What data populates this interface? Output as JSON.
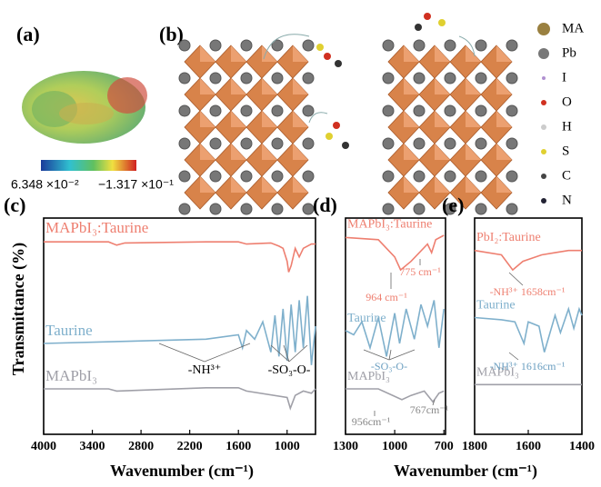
{
  "figure": {
    "panel_a": {
      "label": "(a)",
      "scale_min": "6.348 ×10⁻²",
      "scale_max": "−1.317 ×10⁻¹"
    },
    "panel_b": {
      "label": "(b)",
      "legend": [
        "MA",
        "Pb",
        "I",
        "O",
        "H",
        "S",
        "C",
        "N"
      ]
    }
  },
  "chart_data": [
    {
      "type": "line",
      "label": "(c)",
      "y_label": "Transmittance (%)",
      "x_label": "Wavenumber (cm⁻¹)",
      "xlim": [
        4000,
        650
      ],
      "xticks": [
        4000,
        3400,
        2800,
        2200,
        1600,
        1000
      ],
      "ylim": [
        0,
        100
      ],
      "annotations": [
        "-NH³⁺",
        "-SO₃-O-"
      ],
      "series": [
        {
          "name": "MAPbI₃:Taurine",
          "color": "#ee7f70",
          "x": [
            4000,
            3200,
            3100,
            3000,
            2000,
            1600,
            1500,
            1200,
            1100,
            1050,
            1000,
            980,
            950,
            900,
            850,
            800,
            700,
            650
          ],
          "values": [
            89,
            89,
            87.5,
            88.5,
            89,
            89,
            88,
            88.5,
            87,
            86,
            80,
            75,
            78,
            86,
            82,
            86,
            88,
            88
          ]
        },
        {
          "name": "Taurine",
          "color": "#7fb0cc",
          "x": [
            4000,
            3000,
            2000,
            1600,
            1550,
            1500,
            1400,
            1300,
            1200,
            1150,
            1100,
            1050,
            1000,
            950,
            900,
            850,
            800,
            750,
            700,
            650
          ],
          "values": [
            42,
            43,
            44,
            46,
            40,
            48,
            44,
            52,
            38,
            55,
            36,
            58,
            34,
            60,
            38,
            62,
            40,
            64,
            32,
            50
          ]
        },
        {
          "name": "MAPbI₃",
          "color": "#a0a0a8",
          "x": [
            4000,
            3200,
            3100,
            2000,
            1600,
            1500,
            1000,
            960,
            900,
            800,
            700,
            650
          ],
          "values": [
            21,
            21,
            20,
            21.5,
            21.5,
            20,
            17,
            12,
            18,
            20,
            19,
            21
          ]
        }
      ]
    },
    {
      "type": "line",
      "label": "(d)",
      "x_label": "Wavenumber (cm⁻¹)",
      "xlim": [
        1300,
        690
      ],
      "xticks": [
        1300,
        1000,
        700
      ],
      "ylim": [
        0,
        100
      ],
      "annotations": [
        "964 cm⁻¹",
        "775 cm⁻¹",
        "-SO₃-O-",
        "956cm⁻¹",
        "767cm⁻¹"
      ],
      "series": [
        {
          "name": "MAPbI₃:Taurine",
          "color": "#ee7f70",
          "x": [
            1300,
            1100,
            1000,
            964,
            900,
            800,
            775,
            750,
            700
          ],
          "values": [
            91,
            90,
            82,
            76,
            80,
            88,
            84,
            90,
            92
          ]
        },
        {
          "name": "Taurine",
          "color": "#7fb0cc",
          "x": [
            1300,
            1250,
            1200,
            1150,
            1100,
            1050,
            1000,
            970,
            930,
            880,
            840,
            800,
            760,
            730,
            700
          ],
          "values": [
            48,
            46,
            52,
            40,
            54,
            36,
            56,
            42,
            58,
            44,
            60,
            50,
            62,
            40,
            58
          ]
        },
        {
          "name": "MAPbI₃",
          "color": "#a0a0a8",
          "x": [
            1300,
            1100,
            956,
            900,
            820,
            767,
            730,
            700
          ],
          "values": [
            21,
            21,
            16,
            18,
            20,
            15,
            19,
            20
          ]
        }
      ]
    },
    {
      "type": "line",
      "label": "(e)",
      "xlim": [
        1800,
        1400
      ],
      "xticks": [
        1800,
        1600,
        1400
      ],
      "ylim": [
        0,
        100
      ],
      "annotations": [
        "-NH³⁺ 1658cm⁻¹",
        "-NH³⁺ 1616cm⁻¹"
      ],
      "series": [
        {
          "name": "PbI₂:Taurine",
          "color": "#ee7f70",
          "x": [
            1800,
            1700,
            1658,
            1620,
            1550,
            1500,
            1450,
            1400
          ],
          "values": [
            85,
            83,
            76,
            80,
            83,
            84,
            85,
            85
          ]
        },
        {
          "name": "Taurine",
          "color": "#7fb0cc",
          "x": [
            1800,
            1700,
            1650,
            1616,
            1600,
            1560,
            1540,
            1500,
            1480,
            1450,
            1430,
            1410,
            1400
          ],
          "values": [
            54,
            53,
            52,
            42,
            52,
            50,
            38,
            55,
            47,
            58,
            49,
            58,
            55
          ]
        },
        {
          "name": "MAPbI₃",
          "color": "#a0a0a8",
          "x": [
            1800,
            1600,
            1400
          ],
          "values": [
            23,
            23,
            23
          ]
        }
      ]
    }
  ]
}
